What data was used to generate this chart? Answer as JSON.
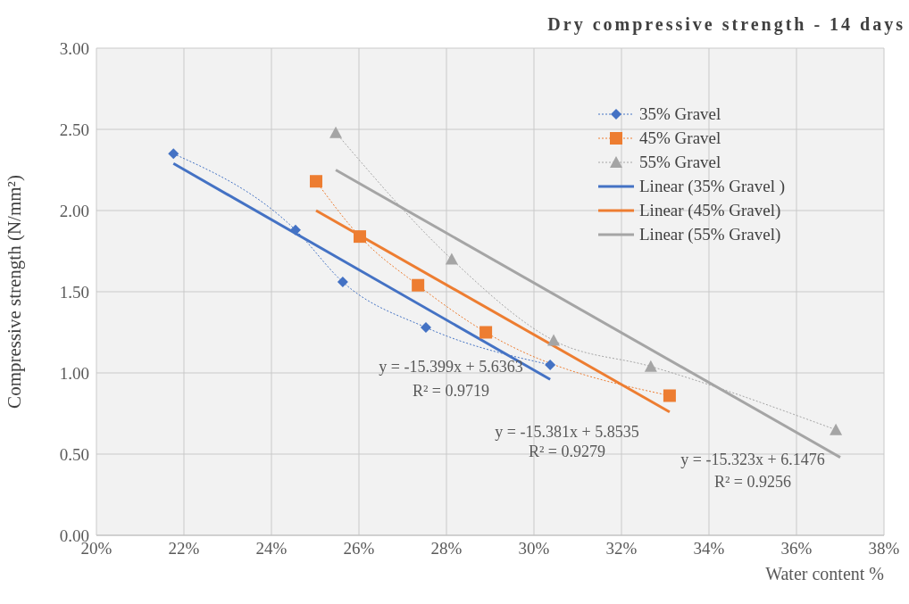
{
  "chart_data": {
    "type": "line",
    "title": "Dry compressive strength - 14 days",
    "xlabel": "Water content %",
    "ylabel": "Compressive strength (N/mm²)",
    "xlim": [
      20,
      38
    ],
    "xticks": [
      {
        "value": 20,
        "label": "20%"
      },
      {
        "value": 22,
        "label": "22%"
      },
      {
        "value": 24,
        "label": "24%"
      },
      {
        "value": 26,
        "label": "26%"
      },
      {
        "value": 28,
        "label": "28%"
      },
      {
        "value": 30,
        "label": "30%"
      },
      {
        "value": 32,
        "label": "32%"
      },
      {
        "value": 34,
        "label": "34%"
      },
      {
        "value": 36,
        "label": "36%"
      },
      {
        "value": 38,
        "label": "38%"
      }
    ],
    "ylim": [
      0,
      3
    ],
    "yticks": [
      {
        "value": 0,
        "label": "0.00"
      },
      {
        "value": 0.5,
        "label": "0.50"
      },
      {
        "value": 1,
        "label": "1.00"
      },
      {
        "value": 1.5,
        "label": "1.50"
      },
      {
        "value": 2,
        "label": "2.00"
      },
      {
        "value": 2.5,
        "label": "2.50"
      },
      {
        "value": 3,
        "label": "3.00"
      }
    ],
    "grid": true,
    "legend": "top right",
    "series": [
      {
        "name": "35% Gravel",
        "color": "#4472c4",
        "marker": "diamond",
        "line_style": "dotted",
        "x": [
          21.76,
          24.55,
          25.63,
          27.53,
          30.37
        ],
        "values": [
          2.35,
          1.88,
          1.56,
          1.28,
          1.05
        ]
      },
      {
        "name": "45% Gravel",
        "color": "#ed7d31",
        "marker": "square",
        "line_style": "dotted",
        "x": [
          25.02,
          26.02,
          27.35,
          28.9,
          33.1
        ],
        "values": [
          2.18,
          1.84,
          1.54,
          1.25,
          0.86
        ]
      },
      {
        "name": "55% Gravel",
        "color": "#a5a5a5",
        "marker": "triangle",
        "line_style": "dotted",
        "x": [
          25.47,
          28.12,
          30.45,
          32.67,
          36.9
        ],
        "values": [
          2.48,
          1.7,
          1.2,
          1.04,
          0.65
        ]
      },
      {
        "name": "Linear (35% Gravel )",
        "color": "#4472c4",
        "marker": "none",
        "line_style": "solid",
        "x": [
          21.76,
          30.37
        ],
        "values": [
          2.29,
          0.96
        ]
      },
      {
        "name": "Linear (45% Gravel)",
        "color": "#ed7d31",
        "marker": "none",
        "line_style": "solid",
        "x": [
          25.02,
          33.1
        ],
        "values": [
          2.0,
          0.76
        ]
      },
      {
        "name": "Linear (55% Gravel)",
        "color": "#a5a5a5",
        "marker": "none",
        "line_style": "solid",
        "x": [
          25.47,
          37.0
        ],
        "values": [
          2.25,
          0.48
        ]
      }
    ],
    "annotations": [
      "y = -15.399x + 5.6363",
      "R² = 0.9719",
      "y = -15.381x + 5.8535",
      "R² = 0.9279",
      "y = -15.323x + 6.1476",
      "R² = 0.9256"
    ]
  }
}
